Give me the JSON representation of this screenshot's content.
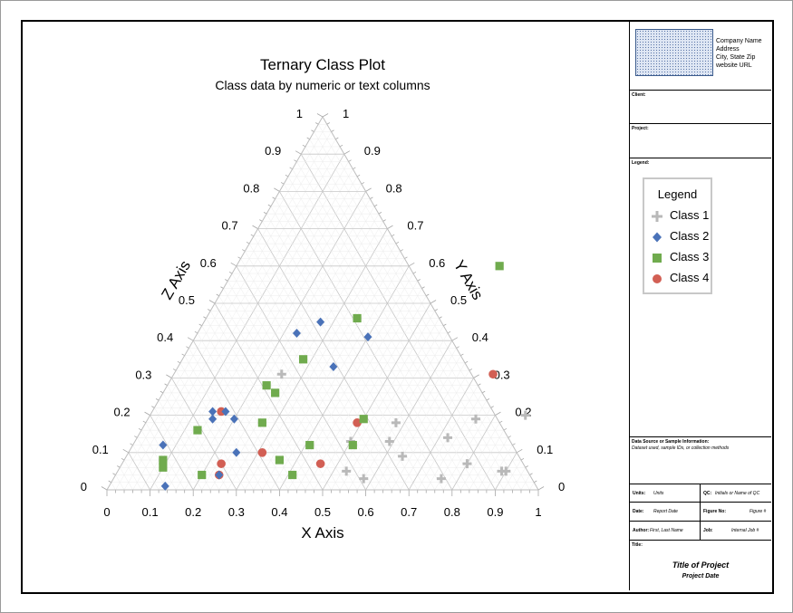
{
  "chart_data": {
    "type": "scatter",
    "subtype": "ternary",
    "title": "Ternary Class Plot",
    "subtitle": "Class data by numeric or text columns",
    "xlabel": "X Axis",
    "ylabel": "Y Axis",
    "zlabel": "Z Axis",
    "ticks": [
      "0",
      "0.1",
      "0.2",
      "0.3",
      "0.4",
      "0.5",
      "0.6",
      "0.7",
      "0.8",
      "0.9",
      "1"
    ],
    "range": [
      0,
      1
    ],
    "grid": true,
    "series": [
      {
        "name": "Class 1",
        "color": "#b9b9b9",
        "marker": "plus",
        "x": [
          0.25,
          0.58,
          0.76,
          0.87,
          0.5,
          0.59,
          0.72,
          0.64,
          0.53,
          0.8,
          0.9,
          0.58,
          0.76,
          0.89
        ],
        "y": [
          0.31,
          0.18,
          0.19,
          0.2,
          0.13,
          0.13,
          0.14,
          0.09,
          0.05,
          0.07,
          0.05,
          0.03,
          0.03,
          0.05
        ]
      },
      {
        "name": "Class 2",
        "color": "#4a72b8",
        "marker": "diamond",
        "x": [
          0.07,
          0.14,
          0.15,
          0.17,
          0.2,
          0.23,
          0.25,
          0.24,
          0.27,
          0.36,
          0.4,
          0.13
        ],
        "y": [
          0.12,
          0.21,
          0.19,
          0.21,
          0.19,
          0.42,
          0.1,
          0.04,
          0.45,
          0.33,
          0.41,
          0.01
        ]
      },
      {
        "name": "Class 3",
        "color": "#70ab4e",
        "marker": "square",
        "x": [
          0.09,
          0.1,
          0.13,
          0.2,
          0.23,
          0.26,
          0.28,
          0.27,
          0.36,
          0.35,
          0.41,
          0.41,
          0.5,
          0.51,
          0.61
        ],
        "y": [
          0.08,
          0.06,
          0.16,
          0.04,
          0.28,
          0.26,
          0.35,
          0.18,
          0.08,
          0.46,
          0.12,
          0.04,
          0.19,
          0.12,
          0.6
        ]
      },
      {
        "name": "Class 4",
        "color": "#d25f54",
        "marker": "circle",
        "x": [
          0.16,
          0.23,
          0.24,
          0.31,
          0.46,
          0.49,
          0.74
        ],
        "y": [
          0.21,
          0.07,
          0.04,
          0.1,
          0.07,
          0.18,
          0.31
        ]
      }
    ]
  },
  "titleblock": {
    "company": {
      "name": "Company Name",
      "address": "Address",
      "city": "City, State Zip",
      "url": "website URL"
    },
    "client_label": "Client:",
    "project_label": "Project:",
    "legend_label": "Legend:",
    "legend_title": "Legend",
    "legend_items": [
      "Class 1",
      "Class 2",
      "Class 3",
      "Class 4"
    ],
    "data_source_label": "Data Source or Sample Information:",
    "data_source_value": "Dataset used, sample IDs, or collection methods",
    "units_label": "Units:",
    "units_value": "Units",
    "qc_label": "QC:",
    "qc_value": "Initials or Name of QC",
    "date_label": "Date:",
    "date_value": "Report Date",
    "figure_label": "Figure No:",
    "figure_value": "Figure #",
    "author_label": "Author:",
    "author_value": "First, Last Name",
    "job_label": "Job:",
    "job_value": "Internal Job #",
    "title_label": "Title:",
    "title_value": "Title of Project",
    "title_date": "Project Date"
  }
}
